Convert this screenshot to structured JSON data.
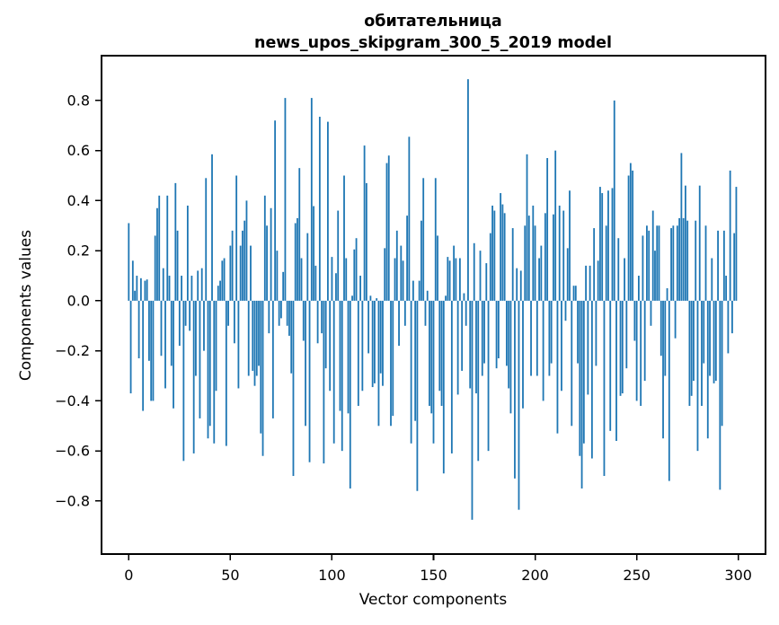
{
  "chart_data": {
    "type": "bar",
    "title": "обитательница\nnews_upos_skipgram_300_5_2019 model",
    "title_lines": [
      "обитательница",
      "news_upos_skipgram_300_5_2019 model"
    ],
    "xlabel": "Vector components",
    "ylabel": "Components values",
    "n_components": 300,
    "bar_color": "#1f77b4",
    "axis_color": "#000000",
    "grid": false,
    "legend": null,
    "xlim": [
      -13.4,
      313.4
    ],
    "ylim": [
      -1.012,
      0.979
    ],
    "x_ticks": [
      0,
      50,
      100,
      150,
      200,
      250,
      300
    ],
    "x_tick_labels": [
      "0",
      "50",
      "100",
      "150",
      "200",
      "250",
      "300"
    ],
    "y_ticks": [
      -0.8,
      -0.6,
      -0.4,
      -0.2,
      0.0,
      0.2,
      0.4,
      0.6,
      0.8
    ],
    "y_tick_labels": [
      "−0.8",
      "−0.6",
      "−0.4",
      "−0.2",
      "0.0",
      "0.2",
      "0.4",
      "0.6",
      "0.8"
    ],
    "bar_width_data_units": 0.8,
    "values": [
      0.31,
      -0.37,
      0.16,
      0.04,
      0.1,
      -0.23,
      0.09,
      -0.44,
      0.08,
      0.085,
      -0.24,
      -0.4,
      -0.4,
      0.26,
      0.37,
      0.42,
      -0.22,
      0.13,
      -0.35,
      0.42,
      0.1,
      -0.26,
      -0.43,
      0.47,
      0.28,
      -0.18,
      0.1,
      -0.64,
      -0.1,
      0.38,
      -0.12,
      0.1,
      -0.61,
      -0.3,
      0.12,
      -0.47,
      0.13,
      -0.2,
      0.49,
      -0.55,
      -0.5,
      0.585,
      -0.57,
      -0.36,
      0.06,
      0.08,
      0.16,
      0.17,
      -0.58,
      -0.1,
      0.22,
      0.28,
      -0.17,
      0.5,
      -0.35,
      0.22,
      0.28,
      0.32,
      0.4,
      -0.3,
      0.22,
      -0.28,
      -0.34,
      -0.3,
      -0.26,
      -0.53,
      -0.62,
      0.42,
      0.3,
      -0.13,
      0.37,
      -0.47,
      0.72,
      0.2,
      -0.1,
      -0.07,
      0.115,
      0.81,
      -0.1,
      -0.14,
      -0.29,
      -0.7,
      0.31,
      0.33,
      0.53,
      0.17,
      -0.16,
      -0.5,
      0.27,
      -0.645,
      0.81,
      0.378,
      0.14,
      -0.17,
      0.735,
      -0.13,
      -0.65,
      -0.27,
      0.715,
      -0.36,
      0.175,
      -0.57,
      0.11,
      0.36,
      -0.44,
      -0.6,
      0.5,
      0.17,
      -0.45,
      -0.75,
      0.02,
      0.205,
      0.25,
      -0.42,
      0.1,
      -0.36,
      0.62,
      0.47,
      -0.21,
      0.02,
      -0.345,
      -0.33,
      0.01,
      -0.5,
      -0.29,
      -0.34,
      0.21,
      0.55,
      0.58,
      -0.5,
      -0.46,
      0.17,
      0.28,
      -0.18,
      0.22,
      0.16,
      -0.1,
      0.34,
      0.655,
      -0.57,
      0.08,
      -0.48,
      -0.76,
      0.08,
      0.32,
      0.49,
      -0.1,
      0.04,
      -0.42,
      -0.45,
      -0.57,
      0.49,
      0.26,
      -0.36,
      -0.42,
      -0.69,
      0.02,
      0.175,
      0.16,
      -0.61,
      0.22,
      0.17,
      -0.375,
      0.17,
      -0.28,
      0.03,
      -0.1,
      0.885,
      -0.35,
      -0.875,
      0.23,
      -0.37,
      -0.64,
      0.2,
      -0.3,
      -0.25,
      0.15,
      -0.6,
      0.27,
      0.38,
      0.36,
      -0.27,
      -0.23,
      0.43,
      0.385,
      0.35,
      -0.26,
      -0.35,
      -0.45,
      0.29,
      -0.71,
      0.13,
      -0.835,
      0.12,
      -0.43,
      0.3,
      0.585,
      0.34,
      -0.3,
      0.38,
      0.3,
      -0.3,
      0.17,
      0.22,
      -0.4,
      0.35,
      0.57,
      -0.3,
      -0.25,
      0.345,
      0.6,
      -0.53,
      0.38,
      -0.36,
      0.36,
      -0.08,
      0.21,
      0.44,
      -0.5,
      0.06,
      0.06,
      -0.25,
      -0.62,
      -0.75,
      -0.57,
      0.14,
      -0.375,
      0.14,
      -0.63,
      0.29,
      -0.26,
      0.16,
      0.455,
      0.43,
      -0.7,
      0.3,
      0.44,
      -0.52,
      0.45,
      0.8,
      -0.56,
      0.25,
      -0.38,
      -0.37,
      0.17,
      -0.27,
      0.5,
      0.55,
      0.52,
      -0.16,
      -0.4,
      0.1,
      -0.42,
      0.26,
      -0.32,
      0.3,
      0.28,
      -0.1,
      0.36,
      0.2,
      0.3,
      0.3,
      -0.22,
      -0.55,
      -0.3,
      0.05,
      -0.72,
      0.29,
      0.3,
      -0.15,
      0.3,
      0.33,
      0.59,
      0.33,
      0.46,
      0.32,
      -0.42,
      -0.38,
      -0.32,
      0.32,
      -0.6,
      0.46,
      -0.42,
      -0.25,
      0.3,
      -0.55,
      -0.3,
      0.17,
      -0.33,
      -0.32,
      0.28,
      -0.755,
      -0.5,
      0.28,
      0.1,
      -0.21,
      0.52,
      -0.13,
      0.27,
      0.455
    ]
  }
}
